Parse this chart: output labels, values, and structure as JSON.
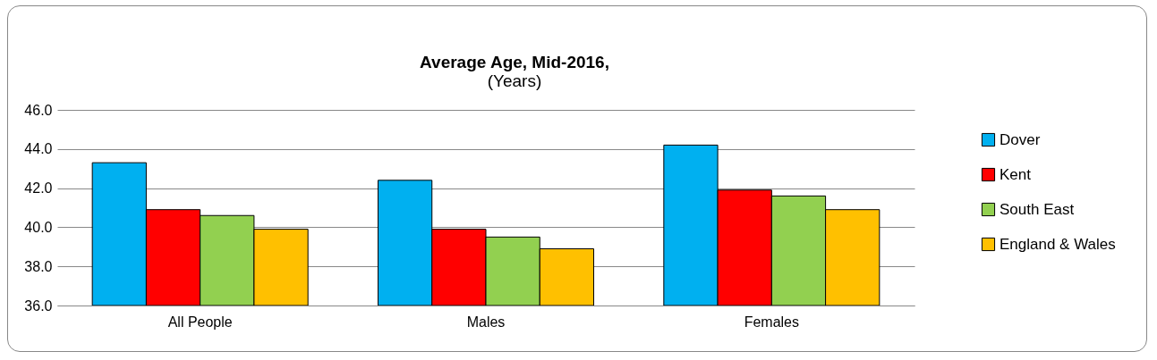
{
  "chart_data": {
    "type": "bar",
    "title": "Average Age, Mid-2016,",
    "subtitle": "(Years)",
    "categories": [
      "All People",
      "Males",
      "Females"
    ],
    "series": [
      {
        "name": "Dover",
        "color": "#00b0f0",
        "values": [
          43.3,
          42.4,
          44.2
        ]
      },
      {
        "name": "Kent",
        "color": "#ff0000",
        "values": [
          40.9,
          39.9,
          41.9
        ]
      },
      {
        "name": "South East",
        "color": "#92d050",
        "values": [
          40.6,
          39.5,
          41.6
        ]
      },
      {
        "name": "England & Wales",
        "color": "#ffc000",
        "values": [
          39.9,
          38.9,
          40.9
        ]
      }
    ],
    "ylim": [
      36,
      46
    ],
    "yticks": [
      {
        "value": 36,
        "label": "36.0"
      },
      {
        "value": 38,
        "label": "38.0"
      },
      {
        "value": 40,
        "label": "40.0"
      },
      {
        "value": 42,
        "label": "42.0"
      },
      {
        "value": 44,
        "label": "44.0"
      },
      {
        "value": 46,
        "label": "46.0"
      }
    ],
    "grid": "y",
    "legend": "right"
  }
}
